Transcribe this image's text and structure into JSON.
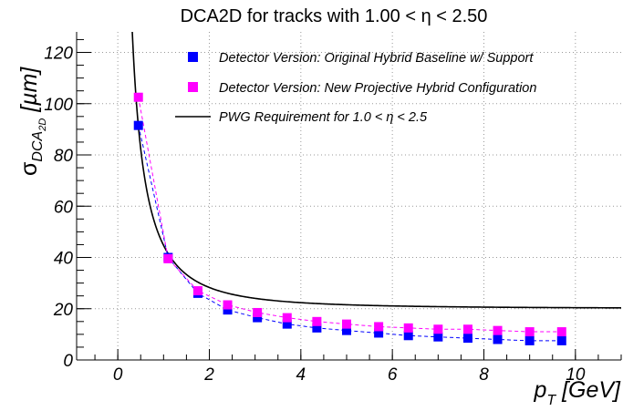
{
  "chart_data": {
    "type": "scatter",
    "title": "DCA2D for tracks with 1.00 < η < 2.50",
    "xlabel": {
      "main": "p",
      "sub": "T",
      "unit": " [GeV]"
    },
    "ylabel": {
      "main": "σ",
      "sub": "DCA",
      "subsub": "2D",
      "unit": " [µm]"
    },
    "xlim": [
      -0.9,
      11.0
    ],
    "ylim": [
      0,
      128
    ],
    "x_ticks": [
      "0",
      "2",
      "4",
      "6",
      "8",
      "10"
    ],
    "y_ticks": [
      "0",
      "20",
      "40",
      "60",
      "80",
      "100",
      "120"
    ],
    "grid": true,
    "legend_position": "top-right",
    "series": [
      {
        "name": "Detector Version: Original Hybrid Baseline w/ Support",
        "color": "#0000ff",
        "marker": "square",
        "x": [
          0.45,
          1.1,
          1.75,
          2.4,
          3.05,
          3.7,
          4.35,
          5.0,
          5.7,
          6.35,
          7.0,
          7.65,
          8.3,
          9.0,
          9.7
        ],
        "y": [
          91.5,
          40.0,
          26.0,
          19.5,
          16.5,
          14.0,
          12.5,
          11.5,
          10.5,
          9.5,
          9.0,
          8.5,
          8.0,
          7.5,
          7.5
        ]
      },
      {
        "name": "Detector Version: New Projective Hybrid Configuration",
        "color": "#ff00ff",
        "marker": "square",
        "x": [
          0.45,
          1.1,
          1.75,
          2.4,
          3.05,
          3.7,
          4.35,
          5.0,
          5.7,
          6.35,
          7.0,
          7.65,
          8.3,
          9.0,
          9.7
        ],
        "y": [
          102.5,
          39.5,
          27.0,
          21.5,
          18.5,
          16.5,
          15.0,
          14.0,
          13.0,
          12.5,
          12.0,
          12.0,
          11.5,
          11.0,
          11.0
        ]
      }
    ],
    "curve": {
      "name": "PWG Requirement for 1.0 < η < 2.5",
      "color": "#000000",
      "formula": "sqrt(20^2 + (40/pT)^2)",
      "x_range": [
        0.3,
        11.0
      ]
    }
  }
}
